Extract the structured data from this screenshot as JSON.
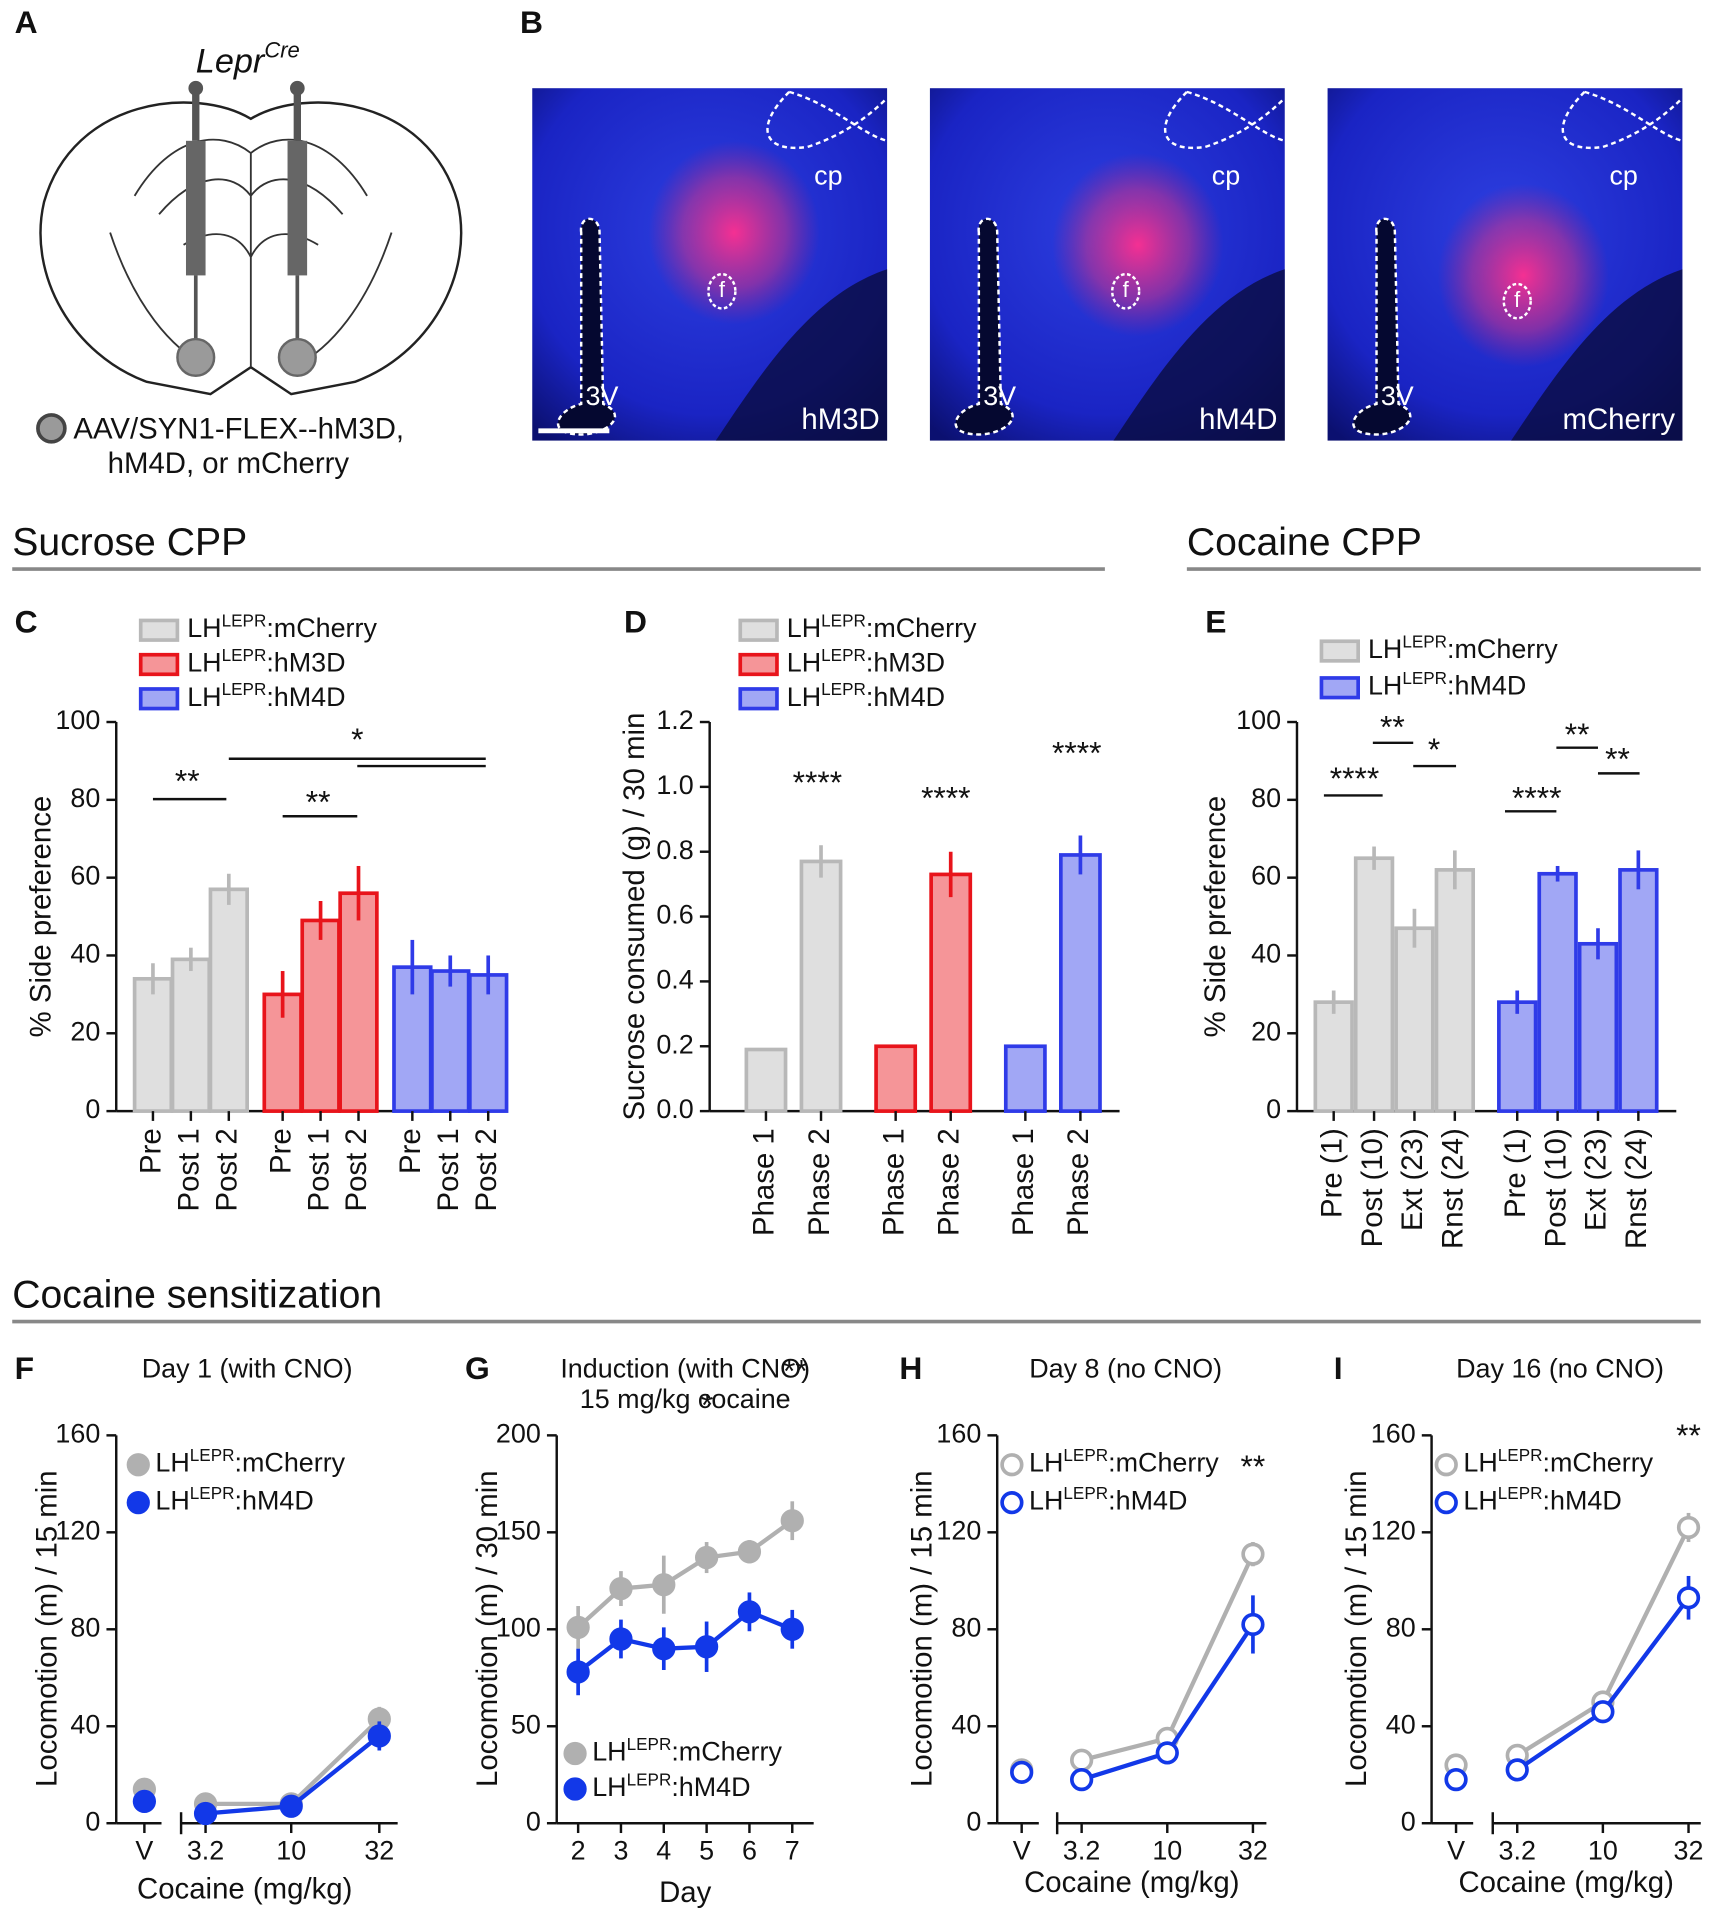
{
  "panel_labels": [
    "A",
    "B",
    "C",
    "D",
    "E",
    "F",
    "G",
    "H",
    "I"
  ],
  "panel_a": {
    "title": "Lepr",
    "title_sup": "Cre",
    "legend": [
      "AAV/SYN1-FLEX--hM3D,",
      "hM4D, or mCherry"
    ]
  },
  "panel_b": {
    "images": [
      {
        "region_labels": [
          "cp",
          "f",
          "3V"
        ],
        "label": "hM3D"
      },
      {
        "region_labels": [
          "cp",
          "f",
          "3V"
        ],
        "label": "hM4D"
      },
      {
        "region_labels": [
          "cp",
          "f",
          "3V"
        ],
        "label": "mCherry"
      }
    ]
  },
  "sections": [
    "Sucrose CPP",
    "Cocaine CPP",
    "Cocaine sensitization"
  ],
  "chart_data": [
    {
      "type": "bar",
      "ylabel": "% Side preference",
      "categories": [
        "Pre",
        "Post 1",
        "Post 2"
      ],
      "series": [
        {
          "name": "LHLEPR:mCherry",
          "color": "#b8b8b8",
          "values": [
            34,
            39,
            57
          ],
          "errors": [
            4,
            3,
            4
          ]
        },
        {
          "name": "LHLEPR:hM3D",
          "color": "#e8141b",
          "values": [
            30,
            49,
            56
          ],
          "errors": [
            6,
            5,
            7
          ]
        },
        {
          "name": "LHLEPR:hM4D",
          "color": "#2f3be8",
          "values": [
            37,
            36,
            35
          ],
          "errors": [
            7,
            4,
            5
          ]
        }
      ],
      "ylim": [
        0,
        100
      ],
      "yticks": [
        0,
        20,
        40,
        60,
        80,
        100
      ],
      "annotations": [
        "**",
        "**",
        "*"
      ]
    },
    {
      "type": "bar",
      "ylabel": "Sucrose consumed (g) / 30 min",
      "categories": [
        "Phase 1",
        "Phase 2"
      ],
      "series": [
        {
          "name": "LHLEPR:mCherry",
          "color": "#b8b8b8",
          "values": [
            0.19,
            0.77
          ],
          "errors": [
            0,
            0.05
          ]
        },
        {
          "name": "LHLEPR:hM3D",
          "color": "#e8141b",
          "values": [
            0.2,
            0.73
          ],
          "errors": [
            0,
            0.07
          ]
        },
        {
          "name": "LHLEPR:hM4D",
          "color": "#2f3be8",
          "values": [
            0.2,
            0.79
          ],
          "errors": [
            0,
            0.06
          ]
        }
      ],
      "ylim": [
        0,
        1.2
      ],
      "yticks": [
        {
          "value": 0,
          "label": "0.0"
        },
        0.2,
        0.4,
        0.6,
        0.8,
        {
          "value": 1,
          "label": "1.0"
        },
        1.2
      ],
      "annotations": [
        "****",
        "****",
        "****"
      ]
    },
    {
      "type": "bar",
      "ylabel": "% Side preference",
      "categories": [
        "Pre (1)",
        "Post (10)",
        "Ext (23)",
        "Rnst (24)"
      ],
      "series": [
        {
          "name": "LHLEPR:mCherry",
          "color": "#b8b8b8",
          "values": [
            28,
            65,
            47,
            62
          ],
          "errors": [
            3,
            3,
            5,
            5
          ]
        },
        {
          "name": "LHLEPR:hM4D",
          "color": "#2f3be8",
          "values": [
            28,
            61,
            43,
            62
          ],
          "errors": [
            3,
            2,
            4,
            5
          ]
        }
      ],
      "ylim": [
        0,
        100
      ],
      "yticks": [
        0,
        20,
        40,
        60,
        80,
        100
      ],
      "annotations": [
        "****",
        "**",
        "*",
        "****",
        "**",
        "**"
      ]
    },
    {
      "type": "line",
      "title": "Day 1 (with CNO)",
      "xlabel": "Cocaine (mg/kg)",
      "ylabel": "Locomotion (m) / 15 min",
      "categories": [
        "V",
        "3.2",
        "10",
        "32"
      ],
      "marker": "filled",
      "axis_break": true,
      "series": [
        {
          "name": "LHLEPR:mCherry",
          "color": "#b0b0b0",
          "values": [
            14,
            8,
            8,
            43
          ],
          "errors": [
            2,
            2,
            2,
            5
          ]
        },
        {
          "name": "LHLEPR:hM4D",
          "color": "#1238e8",
          "values": [
            9,
            4,
            7,
            36
          ],
          "errors": [
            2,
            2,
            2,
            6
          ]
        }
      ],
      "ylim": [
        0,
        160
      ],
      "yticks": [
        0,
        40,
        80,
        120,
        160
      ]
    },
    {
      "type": "line",
      "title": "Induction (with CNO)",
      "subtitle": "15 mg/kg cocaine",
      "xlabel": "Day",
      "ylabel": "Locomotion (m) / 30 min",
      "x": [
        2,
        3,
        4,
        5,
        6,
        7
      ],
      "marker": "filled",
      "series": [
        {
          "name": "LHLEPR:mCherry",
          "color": "#b0b0b0",
          "values": [
            101,
            121,
            123,
            137,
            140,
            156
          ],
          "errors": [
            11,
            9,
            15,
            8,
            6,
            10
          ]
        },
        {
          "name": "LHLEPR:hM4D",
          "color": "#1238e8",
          "values": [
            78,
            95,
            90,
            91,
            109,
            100
          ],
          "errors": [
            12,
            10,
            11,
            13,
            10,
            10
          ]
        }
      ],
      "xlim": [
        1.5,
        7.5
      ],
      "xticks": [
        2,
        3,
        4,
        5,
        6,
        7
      ],
      "ylim": [
        0,
        200
      ],
      "yticks": [
        0,
        50,
        100,
        150,
        200
      ],
      "annotations": [
        "*",
        "**"
      ]
    },
    {
      "type": "line",
      "title": "Day 8 (no CNO)",
      "xlabel": "Cocaine (mg/kg)",
      "ylabel": "Locomotion (m) / 15 min",
      "categories": [
        "V",
        "3.2",
        "10",
        "32"
      ],
      "marker": "open",
      "axis_break": true,
      "series": [
        {
          "name": "LHLEPR:mCherry",
          "color": "#b0b0b0",
          "values": [
            22,
            26,
            35,
            111
          ],
          "errors": [
            2,
            3,
            3,
            5
          ]
        },
        {
          "name": "LHLEPR:hM4D",
          "color": "#1238e8",
          "values": [
            21,
            18,
            29,
            82
          ],
          "errors": [
            2,
            4,
            4,
            12
          ]
        }
      ],
      "ylim": [
        0,
        160
      ],
      "yticks": [
        0,
        40,
        80,
        120,
        160
      ],
      "annotations": [
        "**"
      ]
    },
    {
      "type": "line",
      "title": "Day 16 (no CNO)",
      "xlabel": "Cocaine (mg/kg)",
      "ylabel": "Locomotion (m) / 15 min",
      "categories": [
        "V",
        "3.2",
        "10",
        "32"
      ],
      "marker": "open",
      "axis_break": true,
      "series": [
        {
          "name": "LHLEPR:mCherry",
          "color": "#b0b0b0",
          "values": [
            24,
            28,
            50,
            122
          ],
          "errors": [
            2,
            4,
            4,
            6
          ]
        },
        {
          "name": "LHLEPR:hM4D",
          "color": "#1238e8",
          "values": [
            18,
            22,
            46,
            93
          ],
          "errors": [
            2,
            4,
            4,
            9
          ]
        }
      ],
      "ylim": [
        0,
        160
      ],
      "yticks": [
        0,
        40,
        80,
        120,
        160
      ],
      "annotations": [
        "**"
      ]
    }
  ]
}
